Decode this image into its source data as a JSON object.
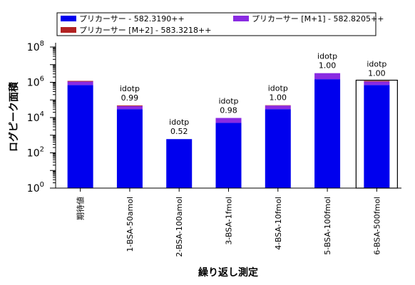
{
  "chart_data": {
    "type": "bar",
    "stacked": true,
    "xlabel": "繰り返し測定",
    "ylabel": "ログピーク面積",
    "yscale": "log",
    "ylim": [
      1,
      100000000
    ],
    "yticks": [
      {
        "value": 1,
        "base": "10",
        "exp": "0"
      },
      {
        "value": 100,
        "base": "10",
        "exp": "2"
      },
      {
        "value": 10000,
        "base": "10",
        "exp": "4"
      },
      {
        "value": 1000000,
        "base": "10",
        "exp": "6"
      },
      {
        "value": 100000000,
        "base": "10",
        "exp": "8"
      }
    ],
    "categories": [
      "期待値",
      "1-BSA-50amol",
      "2-BSA-100amol",
      "3-BSA-1fmol",
      "4-BSA-10fmol",
      "5-BSA-100fmol",
      "6-BSA-500fmol"
    ],
    "series": [
      {
        "name": "プリカーサー - 582.3190++",
        "color": "#0000ee",
        "values": [
          700000,
          30000,
          600,
          5000,
          30000,
          1500000,
          700000
        ]
      },
      {
        "name": "プリカーサー [M+1] - 582.8205++",
        "color": "#8a2be2",
        "values": [
          400000,
          15000,
          0,
          4500,
          18000,
          1800000,
          400000
        ]
      },
      {
        "name": "プリカーサー [M+2] - 583.3218++",
        "color": "#b22222",
        "values": [
          100000,
          4000,
          0,
          0,
          2000,
          0,
          100000
        ]
      }
    ],
    "annotations": [
      {
        "category": "期待値",
        "label": "",
        "value": ""
      },
      {
        "category": "1-BSA-50amol",
        "label": "idotp",
        "value": "0.99"
      },
      {
        "category": "2-BSA-100amol",
        "label": "idotp",
        "value": "0.52"
      },
      {
        "category": "3-BSA-1fmol",
        "label": "idotp",
        "value": "0.98"
      },
      {
        "category": "4-BSA-10fmol",
        "label": "idotp",
        "value": "1.00"
      },
      {
        "category": "5-BSA-100fmol",
        "label": "idotp",
        "value": "1.00"
      },
      {
        "category": "6-BSA-500fmol",
        "label": "idotp",
        "value": "1.00"
      }
    ],
    "selected_category": "6-BSA-500fmol",
    "legend_position": "top"
  }
}
